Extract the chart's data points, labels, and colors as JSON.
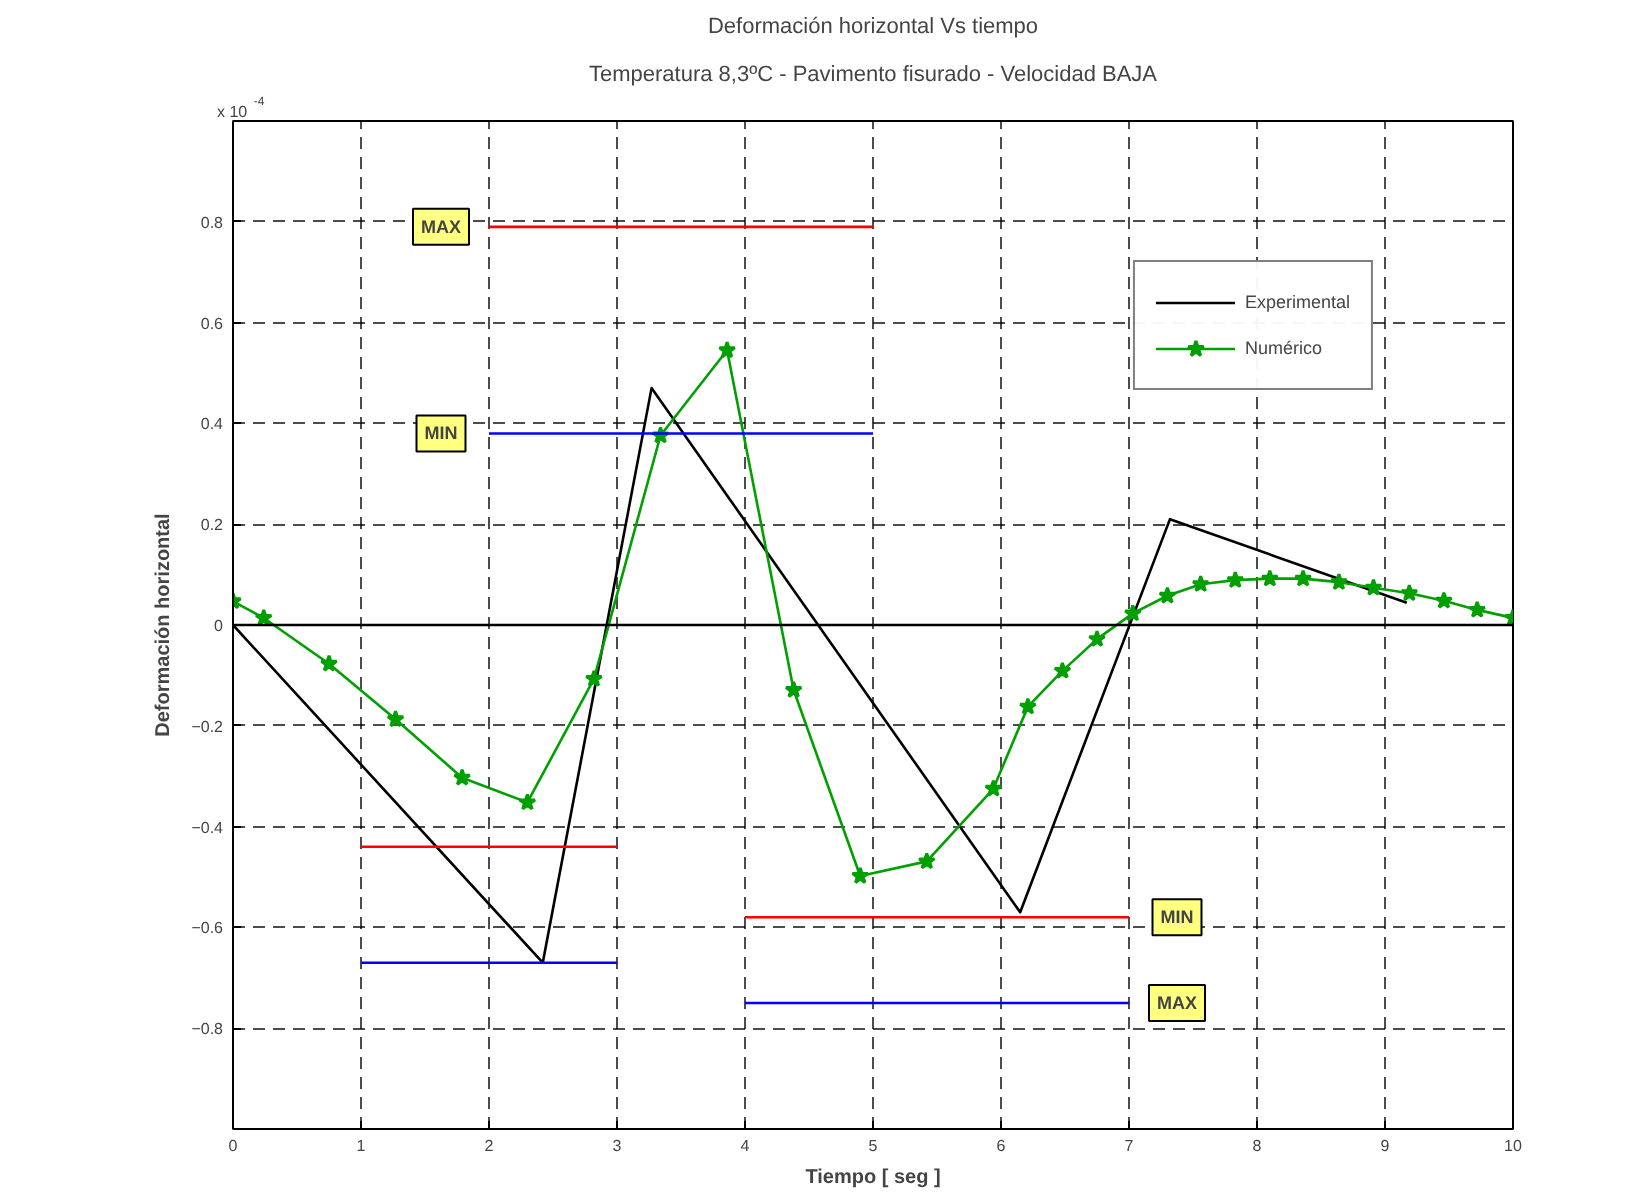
{
  "chart_data": {
    "type": "line",
    "title": "Deformación horizontal Vs tiempo",
    "subtitle": "Temperatura 8,3ºC - Pavimento fisurado - Velocidad BAJA",
    "xlabel": "Tiempo [ seg ]",
    "ylabel": "Deformación horizontal",
    "xlim": [
      0,
      10
    ],
    "ylim": [
      -1,
      1
    ],
    "xticks": [
      0,
      1,
      2,
      3,
      4,
      5,
      6,
      7,
      8,
      9,
      10
    ],
    "yticks": [
      {
        "value": -1,
        "label": null
      },
      -0.8,
      -0.6,
      -0.4,
      -0.2,
      0,
      0.2,
      0.4,
      0.6,
      0.8,
      {
        "value": 1,
        "label": null
      }
    ],
    "grid": true,
    "legend": "top right",
    "line_style": "solid",
    "series": [
      {
        "name": "Experimental",
        "color": "#000000",
        "marker": "none",
        "x": [
          0,
          2.42,
          3.27,
          6.15,
          7.32,
          9.17
        ],
        "values": [
          0,
          -0.67,
          0.47,
          -0.57,
          0.21,
          0.044
        ]
      },
      {
        "name": "Numérico",
        "color": "#00a000",
        "marker": "star",
        "x": [
          0,
          0.24,
          0.75,
          1.27,
          1.79,
          2.3,
          2.82,
          3.34,
          3.86,
          4.38,
          4.9,
          5.42,
          5.94,
          6.21,
          6.48,
          6.75,
          7.03,
          7.3,
          7.56,
          7.83,
          8.1,
          8.36,
          8.64,
          8.91,
          9.19,
          9.46,
          9.72,
          10
        ],
        "values": [
          0.047,
          0.014,
          -0.077,
          -0.187,
          -0.303,
          -0.352,
          -0.107,
          0.376,
          0.545,
          -0.129,
          -0.498,
          -0.469,
          -0.325,
          -0.162,
          -0.091,
          -0.028,
          0.023,
          0.058,
          0.081,
          0.089,
          0.092,
          0.092,
          0.085,
          0.074,
          0.063,
          0.048,
          0.03,
          0.014
        ]
      },
      {
        "name": "MAX",
        "color": "#ff0000",
        "marker": "none",
        "x": [
          2,
          5
        ],
        "values": [
          0.79,
          0.79
        ]
      },
      {
        "name": "MIN",
        "color": "#0000ff",
        "marker": "none",
        "x": [
          2,
          5
        ],
        "values": [
          0.38,
          0.38
        ]
      },
      {
        "color": "#ff0000",
        "marker": "none",
        "x": [
          1,
          3
        ],
        "values": [
          -0.44,
          -0.44
        ]
      },
      {
        "color": "#0000ff",
        "marker": "none",
        "x": [
          1,
          3
        ],
        "values": [
          -0.67,
          -0.67
        ]
      },
      {
        "name": "MIN",
        "color": "#ff0000",
        "marker": "none",
        "x": [
          4,
          7
        ],
        "values": [
          -0.58,
          -0.58
        ]
      },
      {
        "name": "MAX",
        "color": "#0000ff",
        "marker": "none",
        "x": [
          4,
          7
        ],
        "values": [
          -0.75,
          -0.75
        ]
      }
    ],
    "ref_lines": [
      {
        "axis": "y",
        "value": 0,
        "color": "#000000",
        "line_style": "solid"
      }
    ],
    "annotations": [
      "x 10$^{-4}$"
    ]
  }
}
